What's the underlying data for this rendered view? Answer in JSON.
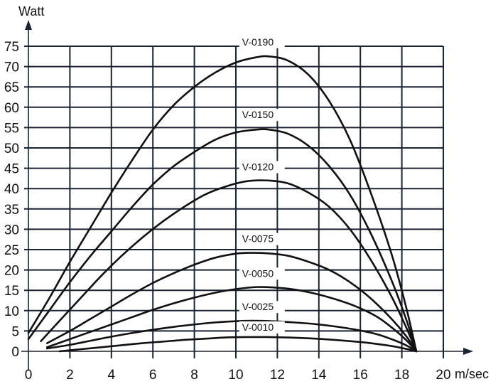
{
  "chart_data": {
    "type": "line",
    "title": "",
    "xlabel": "m/sec",
    "ylabel": "Watt",
    "xlim": [
      0,
      20
    ],
    "ylim": [
      0,
      75
    ],
    "grid": true,
    "legend_position": "inline labels above curve peaks",
    "x_ticks": [
      0,
      2,
      4,
      6,
      8,
      10,
      12,
      14,
      16,
      18,
      20
    ],
    "y_ticks": [
      0,
      5,
      10,
      15,
      20,
      25,
      30,
      35,
      40,
      45,
      50,
      55,
      60,
      65,
      70,
      75
    ],
    "series": [
      {
        "name": "V-0190",
        "label_at": [
          10.3,
          75.2
        ],
        "points": [
          [
            0,
            4.5
          ],
          [
            1,
            13
          ],
          [
            2,
            22
          ],
          [
            3,
            30.5
          ],
          [
            4,
            39
          ],
          [
            5,
            47
          ],
          [
            6,
            54.5
          ],
          [
            7,
            60.5
          ],
          [
            8,
            65
          ],
          [
            9,
            68.5
          ],
          [
            10,
            71
          ],
          [
            11,
            72.3
          ],
          [
            11.6,
            72.5
          ],
          [
            12.5,
            71.5
          ],
          [
            13.5,
            68
          ],
          [
            14.5,
            61.5
          ],
          [
            15.5,
            52
          ],
          [
            16.5,
            39
          ],
          [
            17.5,
            24
          ],
          [
            18.2,
            11
          ],
          [
            18.7,
            0
          ]
        ]
      },
      {
        "name": "V-0150",
        "label_at": [
          10.3,
          57.3
        ],
        "points": [
          [
            0,
            3
          ],
          [
            1,
            10
          ],
          [
            2,
            17
          ],
          [
            3,
            23.5
          ],
          [
            4,
            29.5
          ],
          [
            5,
            35.5
          ],
          [
            6,
            41
          ],
          [
            7,
            45.5
          ],
          [
            8,
            49
          ],
          [
            9,
            52
          ],
          [
            10,
            53.8
          ],
          [
            11,
            54.5
          ],
          [
            11.6,
            54.5
          ],
          [
            12.5,
            53.5
          ],
          [
            13.5,
            50.5
          ],
          [
            14.5,
            45.5
          ],
          [
            15.5,
            38.5
          ],
          [
            16.5,
            29
          ],
          [
            17.5,
            17.5
          ],
          [
            18.2,
            8
          ],
          [
            18.7,
            0
          ]
        ]
      },
      {
        "name": "V-0120",
        "label_at": [
          10.3,
          44.5
        ],
        "points": [
          [
            0.6,
            2.5
          ],
          [
            1.5,
            7.5
          ],
          [
            2.5,
            13
          ],
          [
            3.5,
            18.5
          ],
          [
            4.5,
            23.5
          ],
          [
            5.5,
            28
          ],
          [
            6.5,
            32
          ],
          [
            7.5,
            35.5
          ],
          [
            8.5,
            38.5
          ],
          [
            9.5,
            40.5
          ],
          [
            10.5,
            41.8
          ],
          [
            11.5,
            42
          ],
          [
            12.5,
            41.3
          ],
          [
            13.5,
            39
          ],
          [
            14.5,
            35.5
          ],
          [
            15.5,
            30
          ],
          [
            16.5,
            22.5
          ],
          [
            17.5,
            13.5
          ],
          [
            18.2,
            6
          ],
          [
            18.7,
            0
          ]
        ]
      },
      {
        "name": "V-0075",
        "label_at": [
          10.3,
          26.8
        ],
        "points": [
          [
            0.9,
            2
          ],
          [
            2,
            5
          ],
          [
            3,
            8
          ],
          [
            4,
            11
          ],
          [
            5,
            14
          ],
          [
            6,
            16.8
          ],
          [
            7,
            19.2
          ],
          [
            8,
            21.3
          ],
          [
            9,
            23
          ],
          [
            10,
            24
          ],
          [
            10.7,
            24.2
          ],
          [
            11.5,
            24.1
          ],
          [
            12.5,
            23.5
          ],
          [
            13.5,
            22
          ],
          [
            14.5,
            20
          ],
          [
            15.5,
            17
          ],
          [
            16.5,
            13
          ],
          [
            17.5,
            8
          ],
          [
            18.2,
            3.8
          ],
          [
            18.7,
            0
          ]
        ]
      },
      {
        "name": "V-0050",
        "label_at": [
          10.3,
          18.3
        ],
        "points": [
          [
            0.9,
            1
          ],
          [
            2,
            3
          ],
          [
            3,
            4.8
          ],
          [
            4,
            6.6
          ],
          [
            5,
            8.4
          ],
          [
            6,
            10.2
          ],
          [
            7,
            11.8
          ],
          [
            8,
            13.2
          ],
          [
            9,
            14.4
          ],
          [
            10,
            15.3
          ],
          [
            11,
            15.8
          ],
          [
            11.8,
            15.7
          ],
          [
            12.8,
            15.2
          ],
          [
            13.8,
            14.2
          ],
          [
            14.8,
            12.8
          ],
          [
            15.8,
            11
          ],
          [
            16.8,
            8.5
          ],
          [
            17.6,
            5.5
          ],
          [
            18.2,
            2.8
          ],
          [
            18.7,
            0
          ]
        ]
      },
      {
        "name": "V-0025",
        "label_at": [
          10.3,
          10.1
        ],
        "points": [
          [
            0.9,
            0.7
          ],
          [
            2,
            1.6
          ],
          [
            3,
            2.6
          ],
          [
            4,
            3.6
          ],
          [
            5,
            4.5
          ],
          [
            6,
            5.3
          ],
          [
            7,
            6
          ],
          [
            8,
            6.6
          ],
          [
            9,
            7.1
          ],
          [
            10,
            7.4
          ],
          [
            10.8,
            7.5
          ],
          [
            11.8,
            7.4
          ],
          [
            12.8,
            7.1
          ],
          [
            13.8,
            6.7
          ],
          [
            14.8,
            6.1
          ],
          [
            15.8,
            5.3
          ],
          [
            16.8,
            4.2
          ],
          [
            17.6,
            2.8
          ],
          [
            18.2,
            1.5
          ],
          [
            18.7,
            0
          ]
        ]
      },
      {
        "name": "V-0010",
        "label_at": [
          10.3,
          5.1
        ],
        "points": [
          [
            1.5,
            0
          ],
          [
            2.5,
            0.5
          ],
          [
            3.5,
            1
          ],
          [
            4.5,
            1.5
          ],
          [
            5.5,
            2
          ],
          [
            6.5,
            2.4
          ],
          [
            7.5,
            2.8
          ],
          [
            8.5,
            3.1
          ],
          [
            9.5,
            3.4
          ],
          [
            10.5,
            3.5
          ],
          [
            11.5,
            3.5
          ],
          [
            12.5,
            3.4
          ],
          [
            13.5,
            3.2
          ],
          [
            14.5,
            2.9
          ],
          [
            15.5,
            2.5
          ],
          [
            16.5,
            2
          ],
          [
            17.5,
            1.3
          ],
          [
            18.2,
            0.6
          ],
          [
            18.7,
            0
          ]
        ]
      }
    ]
  },
  "axes": {
    "x_unit": "m/sec",
    "y_unit": "Watt"
  },
  "colors": {
    "grid": "#1a2433",
    "curve": "#111111",
    "background": "#ffffff"
  }
}
